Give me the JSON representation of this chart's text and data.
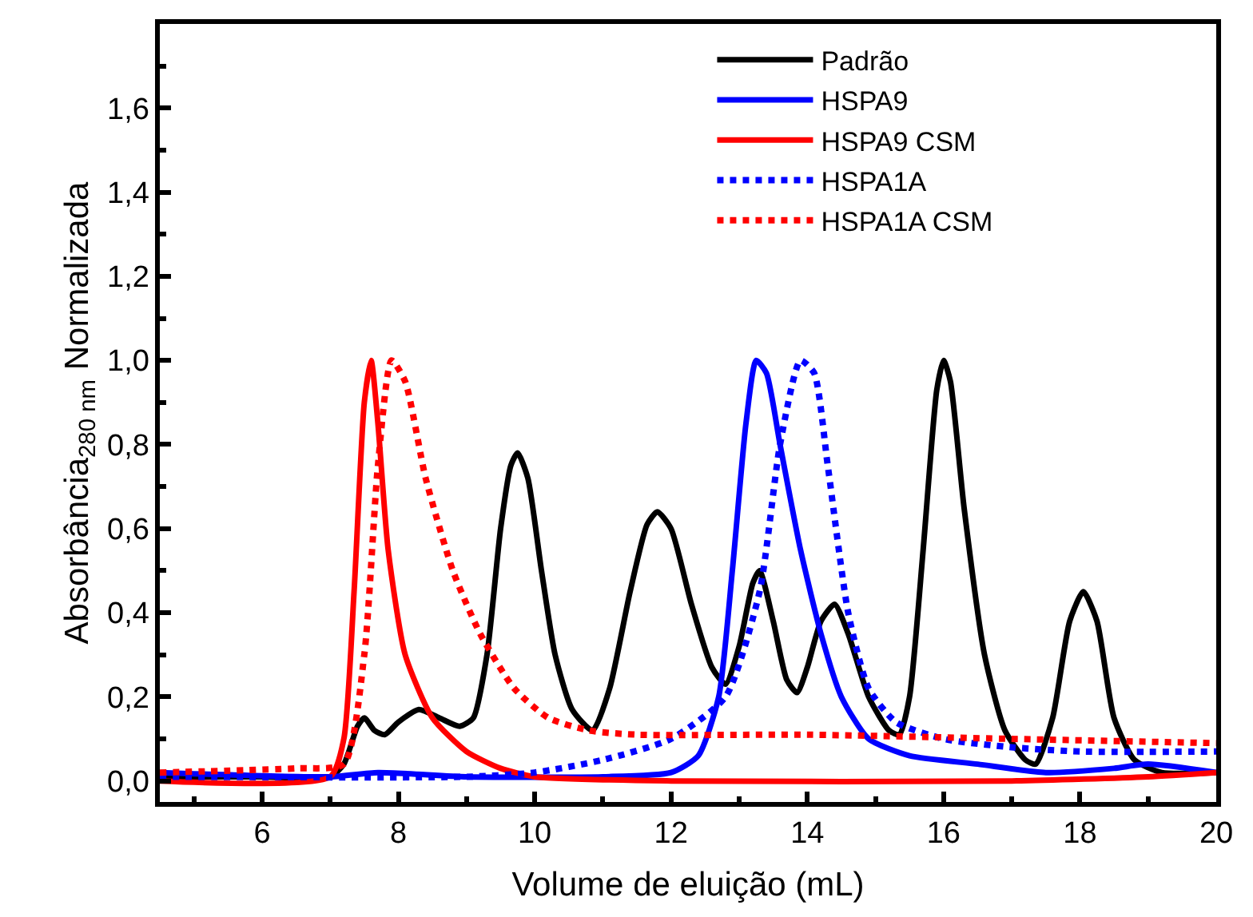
{
  "chart_data": {
    "type": "line",
    "xlabel": "Volume de eluição (mL)",
    "ylabel": "Absorbância$_{280 nm}$ Normalizada",
    "xlim": [
      4.5,
      20
    ],
    "xticks": [
      6,
      8,
      10,
      12,
      14,
      16,
      18,
      20
    ],
    "ylim": [
      -0.05,
      1.8
    ],
    "yticks": [
      {
        "value": 0.0,
        "label": "0,0"
      },
      {
        "value": 0.2,
        "label": "0,2"
      },
      {
        "value": 0.4,
        "label": "0,4"
      },
      {
        "value": 0.6,
        "label": "0,6"
      },
      {
        "value": 0.8,
        "label": "0,8"
      },
      {
        "value": 1.0,
        "label": "1,0"
      },
      {
        "value": 1.2,
        "label": "1,2"
      },
      {
        "value": 1.4,
        "label": "1,4"
      },
      {
        "value": 1.6,
        "label": "1,6"
      }
    ],
    "legend": "top right",
    "marker": "none",
    "series": [
      {
        "name": "Padrão",
        "color": "#000000",
        "line_style": "solid",
        "x": [
          4.5,
          6,
          7.0,
          7.2,
          7.4,
          7.5,
          7.65,
          7.8,
          8.0,
          8.3,
          8.6,
          8.9,
          9.1,
          9.3,
          9.5,
          9.65,
          9.75,
          9.9,
          10.1,
          10.3,
          10.55,
          10.85,
          11.1,
          11.4,
          11.65,
          11.8,
          12.0,
          12.3,
          12.6,
          12.8,
          13.0,
          13.2,
          13.3,
          13.5,
          13.7,
          13.85,
          14.0,
          14.2,
          14.4,
          14.6,
          14.9,
          15.2,
          15.35,
          15.5,
          15.7,
          15.9,
          16.0,
          16.1,
          16.3,
          16.6,
          16.9,
          17.2,
          17.35,
          17.6,
          17.85,
          18.05,
          18.25,
          18.5,
          18.8,
          19.2,
          20
        ],
        "values": [
          0.01,
          0.01,
          0.01,
          0.04,
          0.13,
          0.15,
          0.12,
          0.11,
          0.14,
          0.17,
          0.15,
          0.13,
          0.15,
          0.3,
          0.6,
          0.75,
          0.78,
          0.72,
          0.5,
          0.3,
          0.17,
          0.12,
          0.22,
          0.45,
          0.61,
          0.64,
          0.6,
          0.42,
          0.27,
          0.23,
          0.32,
          0.47,
          0.5,
          0.38,
          0.24,
          0.21,
          0.27,
          0.38,
          0.42,
          0.35,
          0.2,
          0.12,
          0.11,
          0.2,
          0.55,
          0.93,
          1.0,
          0.95,
          0.65,
          0.3,
          0.12,
          0.05,
          0.04,
          0.15,
          0.38,
          0.45,
          0.38,
          0.15,
          0.05,
          0.02,
          0.02
        ]
      },
      {
        "name": "HSPA9",
        "color": "#0000ff",
        "line_style": "solid",
        "x": [
          4.5,
          7.0,
          7.7,
          9,
          11,
          12.0,
          12.4,
          12.7,
          12.9,
          13.1,
          13.25,
          13.4,
          13.6,
          13.9,
          14.2,
          14.5,
          14.9,
          15.5,
          16.5,
          17.5,
          18.5,
          19.0,
          20
        ],
        "values": [
          0.02,
          0.01,
          0.02,
          0.01,
          0.01,
          0.02,
          0.06,
          0.2,
          0.5,
          0.85,
          1.0,
          0.97,
          0.8,
          0.55,
          0.35,
          0.2,
          0.1,
          0.06,
          0.04,
          0.02,
          0.03,
          0.04,
          0.02
        ]
      },
      {
        "name": "HSPA9 CSM",
        "color": "#ff0000",
        "line_style": "solid",
        "x": [
          4.5,
          7.0,
          7.2,
          7.35,
          7.5,
          7.6,
          7.7,
          7.85,
          8.1,
          8.5,
          9.0,
          9.5,
          10,
          12,
          17,
          19,
          20
        ],
        "values": [
          0.0,
          0.01,
          0.1,
          0.45,
          0.9,
          1.0,
          0.85,
          0.55,
          0.3,
          0.15,
          0.07,
          0.03,
          0.01,
          0.0,
          0.0,
          0.01,
          0.02
        ]
      },
      {
        "name": "HSPA1A",
        "color": "#0000ff",
        "line_style": "dotted",
        "x": [
          4.5,
          9,
          10,
          11,
          12,
          12.8,
          13.3,
          13.6,
          13.9,
          14.1,
          14.3,
          14.6,
          14.9,
          15.3,
          16,
          17,
          18,
          20
        ],
        "values": [
          0.01,
          0.01,
          0.02,
          0.05,
          0.1,
          0.2,
          0.45,
          0.8,
          1.0,
          0.97,
          0.75,
          0.4,
          0.22,
          0.14,
          0.1,
          0.08,
          0.07,
          0.07
        ]
      },
      {
        "name": "HSPA1A CSM",
        "color": "#ff0000",
        "line_style": "dotted",
        "x": [
          4.5,
          6.5,
          7.2,
          7.5,
          7.7,
          7.9,
          8.1,
          8.4,
          8.8,
          9.2,
          9.7,
          10.2,
          10.8,
          11.5,
          14,
          17,
          20
        ],
        "values": [
          0.02,
          0.03,
          0.04,
          0.3,
          0.75,
          1.0,
          0.95,
          0.72,
          0.5,
          0.35,
          0.22,
          0.15,
          0.12,
          0.11,
          0.11,
          0.1,
          0.09
        ]
      }
    ]
  }
}
